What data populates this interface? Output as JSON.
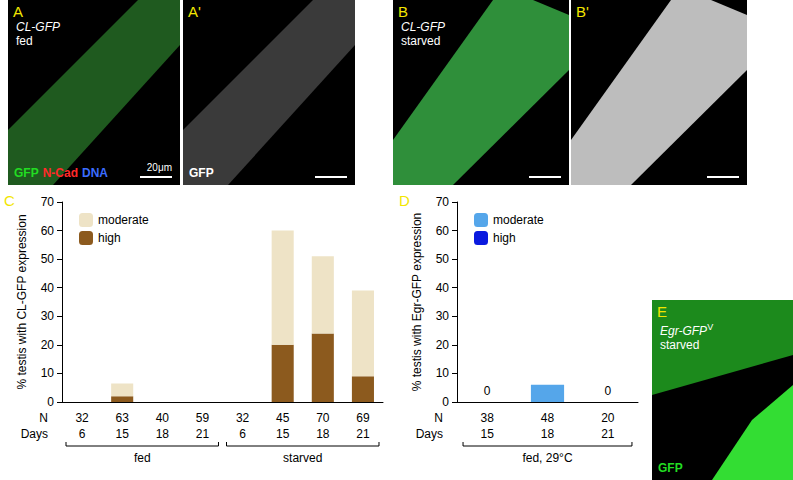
{
  "panels": [
    {
      "letter": "A",
      "labels": [
        "CL-GFP",
        "fed"
      ],
      "channels": [
        {
          "name": "GFP",
          "color": "#22dd22"
        },
        {
          "name": "N-Cad",
          "color": "#ff2a2a"
        },
        {
          "name": "DNA",
          "color": "#3b6cff"
        }
      ],
      "scale_bar": "20μm"
    },
    {
      "letter": "A'",
      "labels": [],
      "channels": [
        {
          "name": "GFP",
          "color": "#ffffff"
        }
      ]
    },
    {
      "letter": "B",
      "labels": [
        "CL-GFP",
        "starved"
      ],
      "channels": []
    },
    {
      "letter": "B'",
      "labels": [],
      "channels": []
    },
    {
      "letter": "E",
      "labels": [
        "Egr-GFP",
        "starved"
      ],
      "superscript": "V",
      "channels": [
        {
          "name": "GFP",
          "color": "#22dd22"
        }
      ]
    }
  ],
  "chart_data": [
    {
      "panel": "C",
      "type": "bar",
      "stacked": true,
      "y_label": "% testis with CL-GFP expression",
      "row_labels": [
        "N",
        "Days"
      ],
      "categories": [
        6,
        15,
        18,
        21,
        6,
        15,
        18,
        21
      ],
      "N": [
        32,
        63,
        40,
        59,
        32,
        45,
        70,
        69
      ],
      "group": [
        "fed",
        "fed",
        "fed",
        "fed",
        "starved",
        "starved",
        "starved",
        "starved"
      ],
      "series": [
        {
          "name": "moderate",
          "color": "#eee3c6",
          "values": [
            0,
            4.5,
            0,
            0,
            0,
            40,
            27,
            30
          ]
        },
        {
          "name": "high",
          "color": "#8c5a1e",
          "values": [
            0,
            2,
            0,
            0,
            0,
            20,
            24,
            9
          ]
        }
      ],
      "ylim": [
        0,
        70
      ],
      "yticks": [
        0,
        10,
        20,
        30,
        40,
        50,
        60,
        70
      ],
      "grid": false,
      "legend": "upper left"
    },
    {
      "panel": "D",
      "type": "bar",
      "stacked": true,
      "y_label": "% testis with Egr-GFP expression",
      "row_labels": [
        "N",
        "Days"
      ],
      "categories": [
        15,
        18,
        21
      ],
      "N": [
        38,
        48,
        20
      ],
      "group": [
        "fed, 29°C",
        "fed, 29°C",
        "fed, 29°C"
      ],
      "series": [
        {
          "name": "moderate",
          "color": "#55a6ea",
          "values": [
            0,
            6,
            0
          ]
        },
        {
          "name": "high",
          "color": "#0a1adf",
          "values": [
            0,
            0,
            0
          ]
        }
      ],
      "data_labels": true,
      "value_labels": [
        "0",
        null,
        "0"
      ],
      "ylim": [
        0,
        70
      ],
      "yticks": [
        0,
        10,
        20,
        30,
        40,
        50,
        60,
        70
      ],
      "grid": false,
      "legend": "upper left"
    }
  ]
}
